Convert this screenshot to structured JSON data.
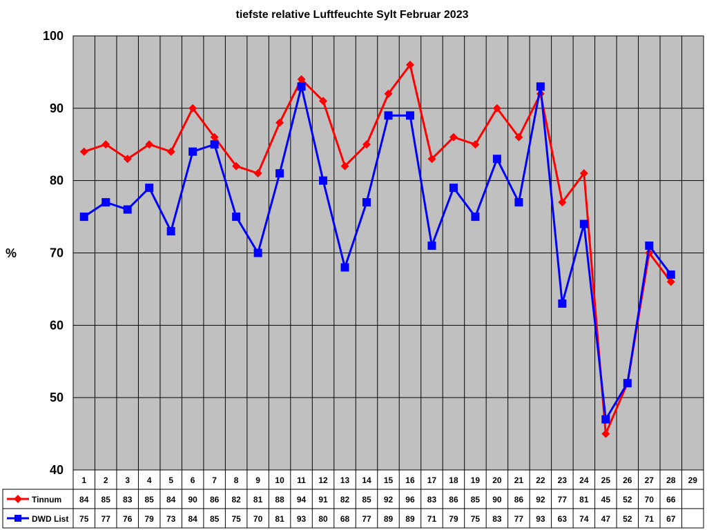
{
  "chart_data": {
    "type": "line",
    "title": "tiefste relative Luftfeuchte Sylt Februar 2023",
    "ylabel": "%",
    "xlabel": "",
    "ylim": [
      40,
      100
    ],
    "yticks": [
      40,
      50,
      60,
      70,
      80,
      90,
      100
    ],
    "categories": [
      "1",
      "2",
      "3",
      "4",
      "5",
      "6",
      "7",
      "8",
      "9",
      "10",
      "11",
      "12",
      "13",
      "14",
      "15",
      "16",
      "17",
      "18",
      "19",
      "20",
      "21",
      "22",
      "23",
      "24",
      "25",
      "26",
      "27",
      "28",
      "29"
    ],
    "grid": true,
    "legend": "data-table-left",
    "series": [
      {
        "name": "Tinnum",
        "color": "#ff0000",
        "marker": "diamond",
        "values": [
          84,
          85,
          83,
          85,
          84,
          90,
          86,
          82,
          81,
          88,
          94,
          91,
          82,
          85,
          92,
          96,
          83,
          86,
          85,
          90,
          86,
          92,
          77,
          81,
          45,
          52,
          70,
          66,
          null
        ]
      },
      {
        "name": "DWD List",
        "color": "#0000ff",
        "marker": "square",
        "values": [
          75,
          77,
          76,
          79,
          73,
          84,
          85,
          75,
          70,
          81,
          93,
          80,
          68,
          77,
          89,
          89,
          71,
          79,
          75,
          83,
          77,
          93,
          63,
          74,
          47,
          52,
          71,
          67,
          null
        ]
      }
    ],
    "plot_background": "#c0c0c0"
  }
}
